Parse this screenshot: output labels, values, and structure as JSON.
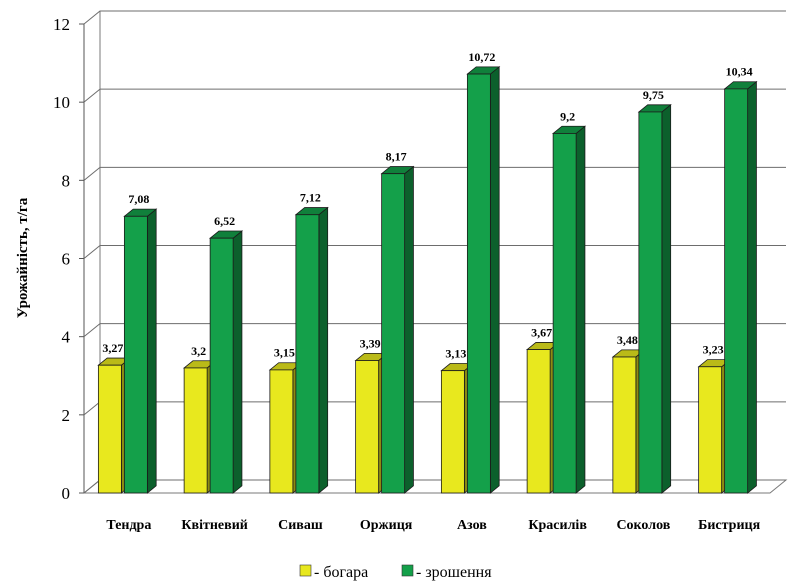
{
  "chart_data": {
    "type": "bar",
    "ylabel": "Урожайність, т/га",
    "xlabel": "",
    "ylim": [
      0,
      12
    ],
    "yticks": [
      0,
      2,
      4,
      6,
      8,
      10,
      12
    ],
    "categories": [
      "Тендра",
      "Квітневий",
      "Сиваш",
      "Оржиця",
      "Азов",
      "Красилів",
      "Соколов",
      "Бистриця"
    ],
    "series": [
      {
        "name": "богара",
        "color": "#e8e81e",
        "values": [
          3.27,
          3.2,
          3.15,
          3.39,
          3.13,
          3.67,
          3.48,
          3.23
        ],
        "labels": [
          "3,27",
          "3,2",
          "3,15",
          "3,39",
          "3,13",
          "3,67",
          "3,48",
          "3,23"
        ]
      },
      {
        "name": "зрошення",
        "color": "#14a04a",
        "values": [
          7.08,
          6.52,
          7.12,
          8.17,
          10.72,
          9.2,
          9.75,
          10.34
        ],
        "labels": [
          "7,08",
          "6,52",
          "7,12",
          "8,17",
          "10,72",
          "9,2",
          "9,75",
          "10,34"
        ]
      }
    ],
    "legend": [
      {
        "marker": "■",
        "text": "- богара",
        "color": "#e8e81e"
      },
      {
        "marker": "■",
        "text": "- зрошення",
        "color": "#14a04a"
      }
    ],
    "legend_position": "bottom-center",
    "grid": true,
    "style": "3d-bars"
  }
}
